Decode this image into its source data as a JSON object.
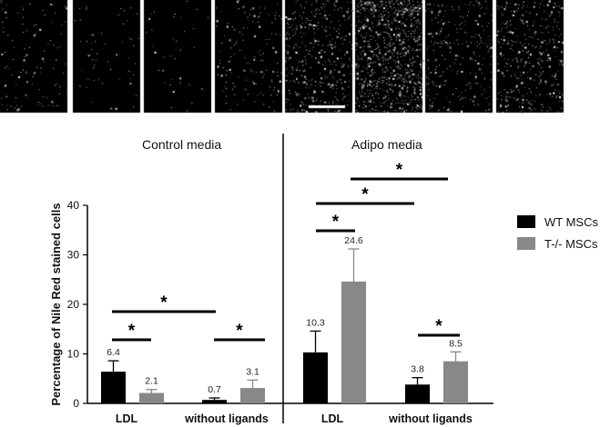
{
  "micrograph_strip": {
    "panels": [
      {
        "density": 0.06,
        "seed": 11
      },
      {
        "density": 0.03,
        "seed": 23
      },
      {
        "density": 0.02,
        "seed": 37
      },
      {
        "density": 0.08,
        "seed": 41
      },
      {
        "density": 0.22,
        "seed": 53
      },
      {
        "density": 0.45,
        "seed": 67
      },
      {
        "density": 0.14,
        "seed": 71
      },
      {
        "density": 0.2,
        "seed": 89
      }
    ],
    "scale_bar_panel": 4
  },
  "chart_data": {
    "type": "bar",
    "ylabel": "Percentage of Nile Red stained cells",
    "ylim": [
      0,
      40
    ],
    "yticks": [
      0,
      10,
      20,
      30,
      40
    ],
    "panels": [
      {
        "title": "Control media",
        "categories": [
          "LDL",
          "without ligands"
        ]
      },
      {
        "title": "Adipo media",
        "categories": [
          "LDL",
          "without ligands"
        ]
      }
    ],
    "series": [
      {
        "name": "WT MSCs",
        "color": "#000000",
        "values": [
          6.4,
          0.7,
          10.3,
          3.8
        ],
        "errors": [
          2.2,
          0.4,
          4.3,
          1.4
        ],
        "labels": [
          "6.4",
          "0.7",
          "10.3",
          "3.8"
        ]
      },
      {
        "name": "T-/- MSCs",
        "color": "#888888",
        "values": [
          2.1,
          3.1,
          24.6,
          8.5
        ],
        "errors": [
          0.7,
          1.6,
          6.6,
          1.9
        ],
        "labels": [
          "2.1",
          "3.1",
          "24.6",
          "8.5"
        ]
      }
    ],
    "significance_marker": "*",
    "legend_placement": "right"
  }
}
